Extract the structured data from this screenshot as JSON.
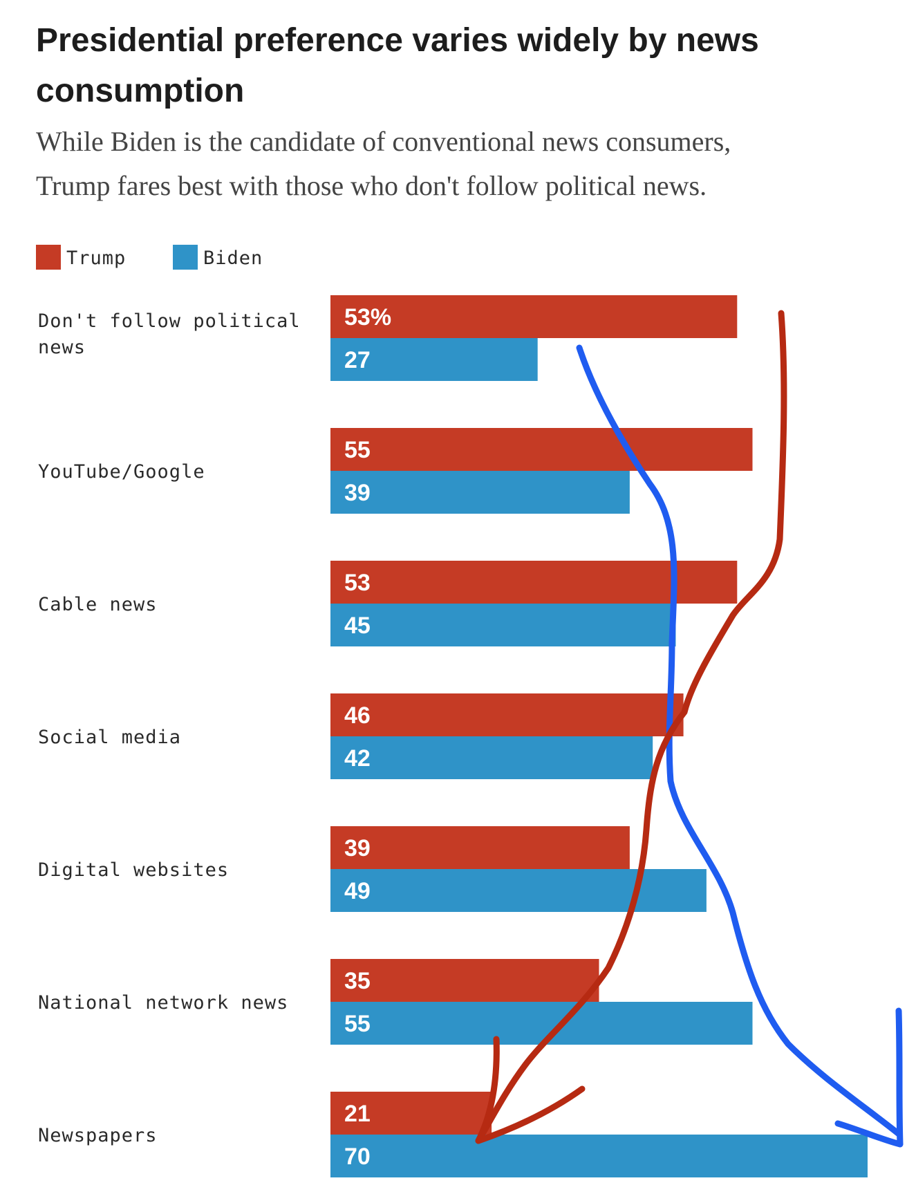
{
  "title_lines": [
    "Presidential preference varies widely by news",
    "consumption"
  ],
  "subtitle_lines": [
    "While Biden is the candidate of conventional news consumers,",
    "Trump fares best with those who don't follow political news."
  ],
  "legend": [
    {
      "label": "Trump",
      "color": "#c53b25"
    },
    {
      "label": "Biden",
      "color": "#2f93c8"
    }
  ],
  "annotation_colors": {
    "trump_arrow": "#b62a12",
    "biden_arrow": "#1f5cf0"
  },
  "chart_data": {
    "type": "bar",
    "orientation": "horizontal",
    "categories": [
      "Don't follow political news",
      "YouTube/Google",
      "Cable news",
      "Social media",
      "Digital websites",
      "National network news",
      "Newspapers"
    ],
    "series": [
      {
        "name": "Trump",
        "color": "#c53b25",
        "values": [
          53,
          55,
          53,
          46,
          39,
          35,
          21
        ],
        "labels": [
          "53%",
          "55",
          "53",
          "46",
          "39",
          "35",
          "21"
        ]
      },
      {
        "name": "Biden",
        "color": "#2f93c8",
        "values": [
          27,
          39,
          45,
          42,
          49,
          55,
          70
        ],
        "labels": [
          "27",
          "39",
          "45",
          "42",
          "49",
          "55",
          "70"
        ]
      }
    ],
    "value_unit": "%",
    "xlim": [
      0,
      70
    ],
    "grid": false,
    "legend_position": "top-left"
  }
}
